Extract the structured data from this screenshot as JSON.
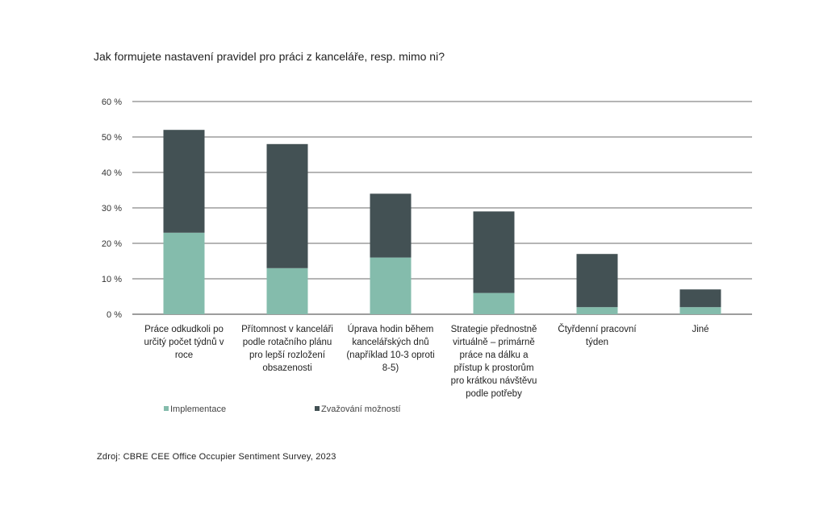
{
  "title": "Jak formujete nastavení pravidel pro práci z kanceláře, resp. mimo ni?",
  "source": "Zdroj: CBRE CEE Office Occupier Sentiment Survey, 2023",
  "colors": {
    "implementace": "#84BCAC",
    "zvazovani": "#435154",
    "grid": "#3a3a3a",
    "axis": "#333333"
  },
  "chart_data": {
    "type": "bar",
    "stacked": true,
    "title": "",
    "xlabel": "",
    "ylabel": "",
    "ylim": [
      0,
      60
    ],
    "yticks": [
      "0 %",
      "10 %",
      "20 %",
      "30 %",
      "40 %",
      "50 %",
      "60 %"
    ],
    "grid": true,
    "legend_position": "bottom-left",
    "categories": [
      [
        "Práce odkudkoli po",
        "určitý počet týdnů v",
        "roce"
      ],
      [
        "Přítomnost v kanceláři",
        "podle rotačního plánu",
        "pro lepší rozložení",
        "obsazenosti"
      ],
      [
        "Úprava hodin během",
        "kancelářských dnů",
        "(například 10-3 oproti",
        "8-5)"
      ],
      [
        "Strategie přednostně",
        "virtuálně – primárně",
        "práce na dálku a",
        "přístup k prostorům",
        "pro krátkou návštěvu",
        "podle potřeby"
      ],
      [
        "Čtyřdenní pracovní",
        "týden"
      ],
      [
        "Jiné"
      ]
    ],
    "series": [
      {
        "name": "Implementace",
        "values": [
          23,
          13,
          16,
          6,
          2,
          2
        ]
      },
      {
        "name": "Zvažování možností",
        "values": [
          29,
          35,
          18,
          23,
          15,
          5
        ]
      }
    ]
  }
}
